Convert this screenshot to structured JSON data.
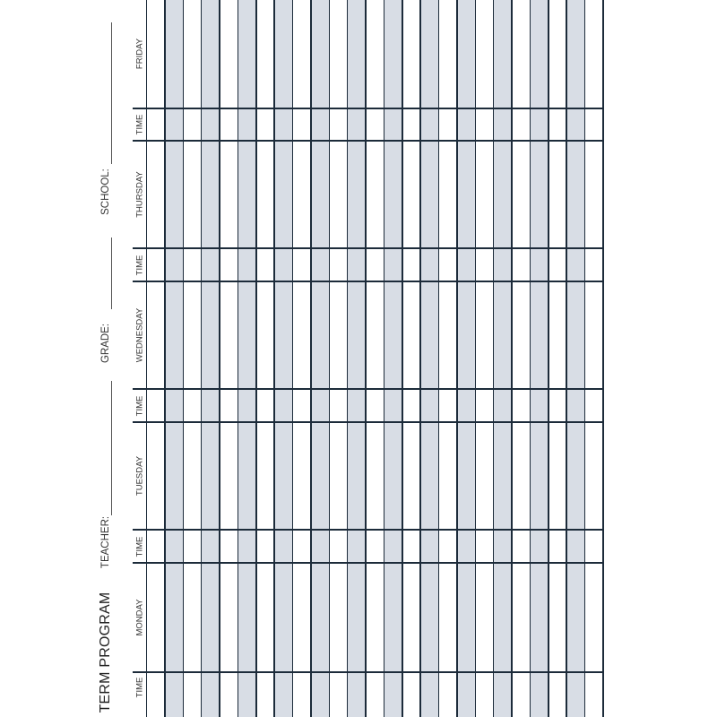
{
  "title": "TERM PROGRAM",
  "header_fields": [
    {
      "label": "TEACHER:"
    },
    {
      "label": "GRADE:"
    },
    {
      "label": "SCHOOL:"
    }
  ],
  "days": [
    {
      "name": "MONDAY",
      "time_label": "TIME"
    },
    {
      "name": "TUESDAY",
      "time_label": "TIME"
    },
    {
      "name": "WEDNESDAY",
      "time_label": "TIME"
    },
    {
      "name": "THURSDAY",
      "time_label": "TIME"
    },
    {
      "name": "FRIDAY",
      "time_label": "TIME"
    }
  ],
  "colors": {
    "stripe": "#d8dde5",
    "line": "#1c2b3a"
  }
}
